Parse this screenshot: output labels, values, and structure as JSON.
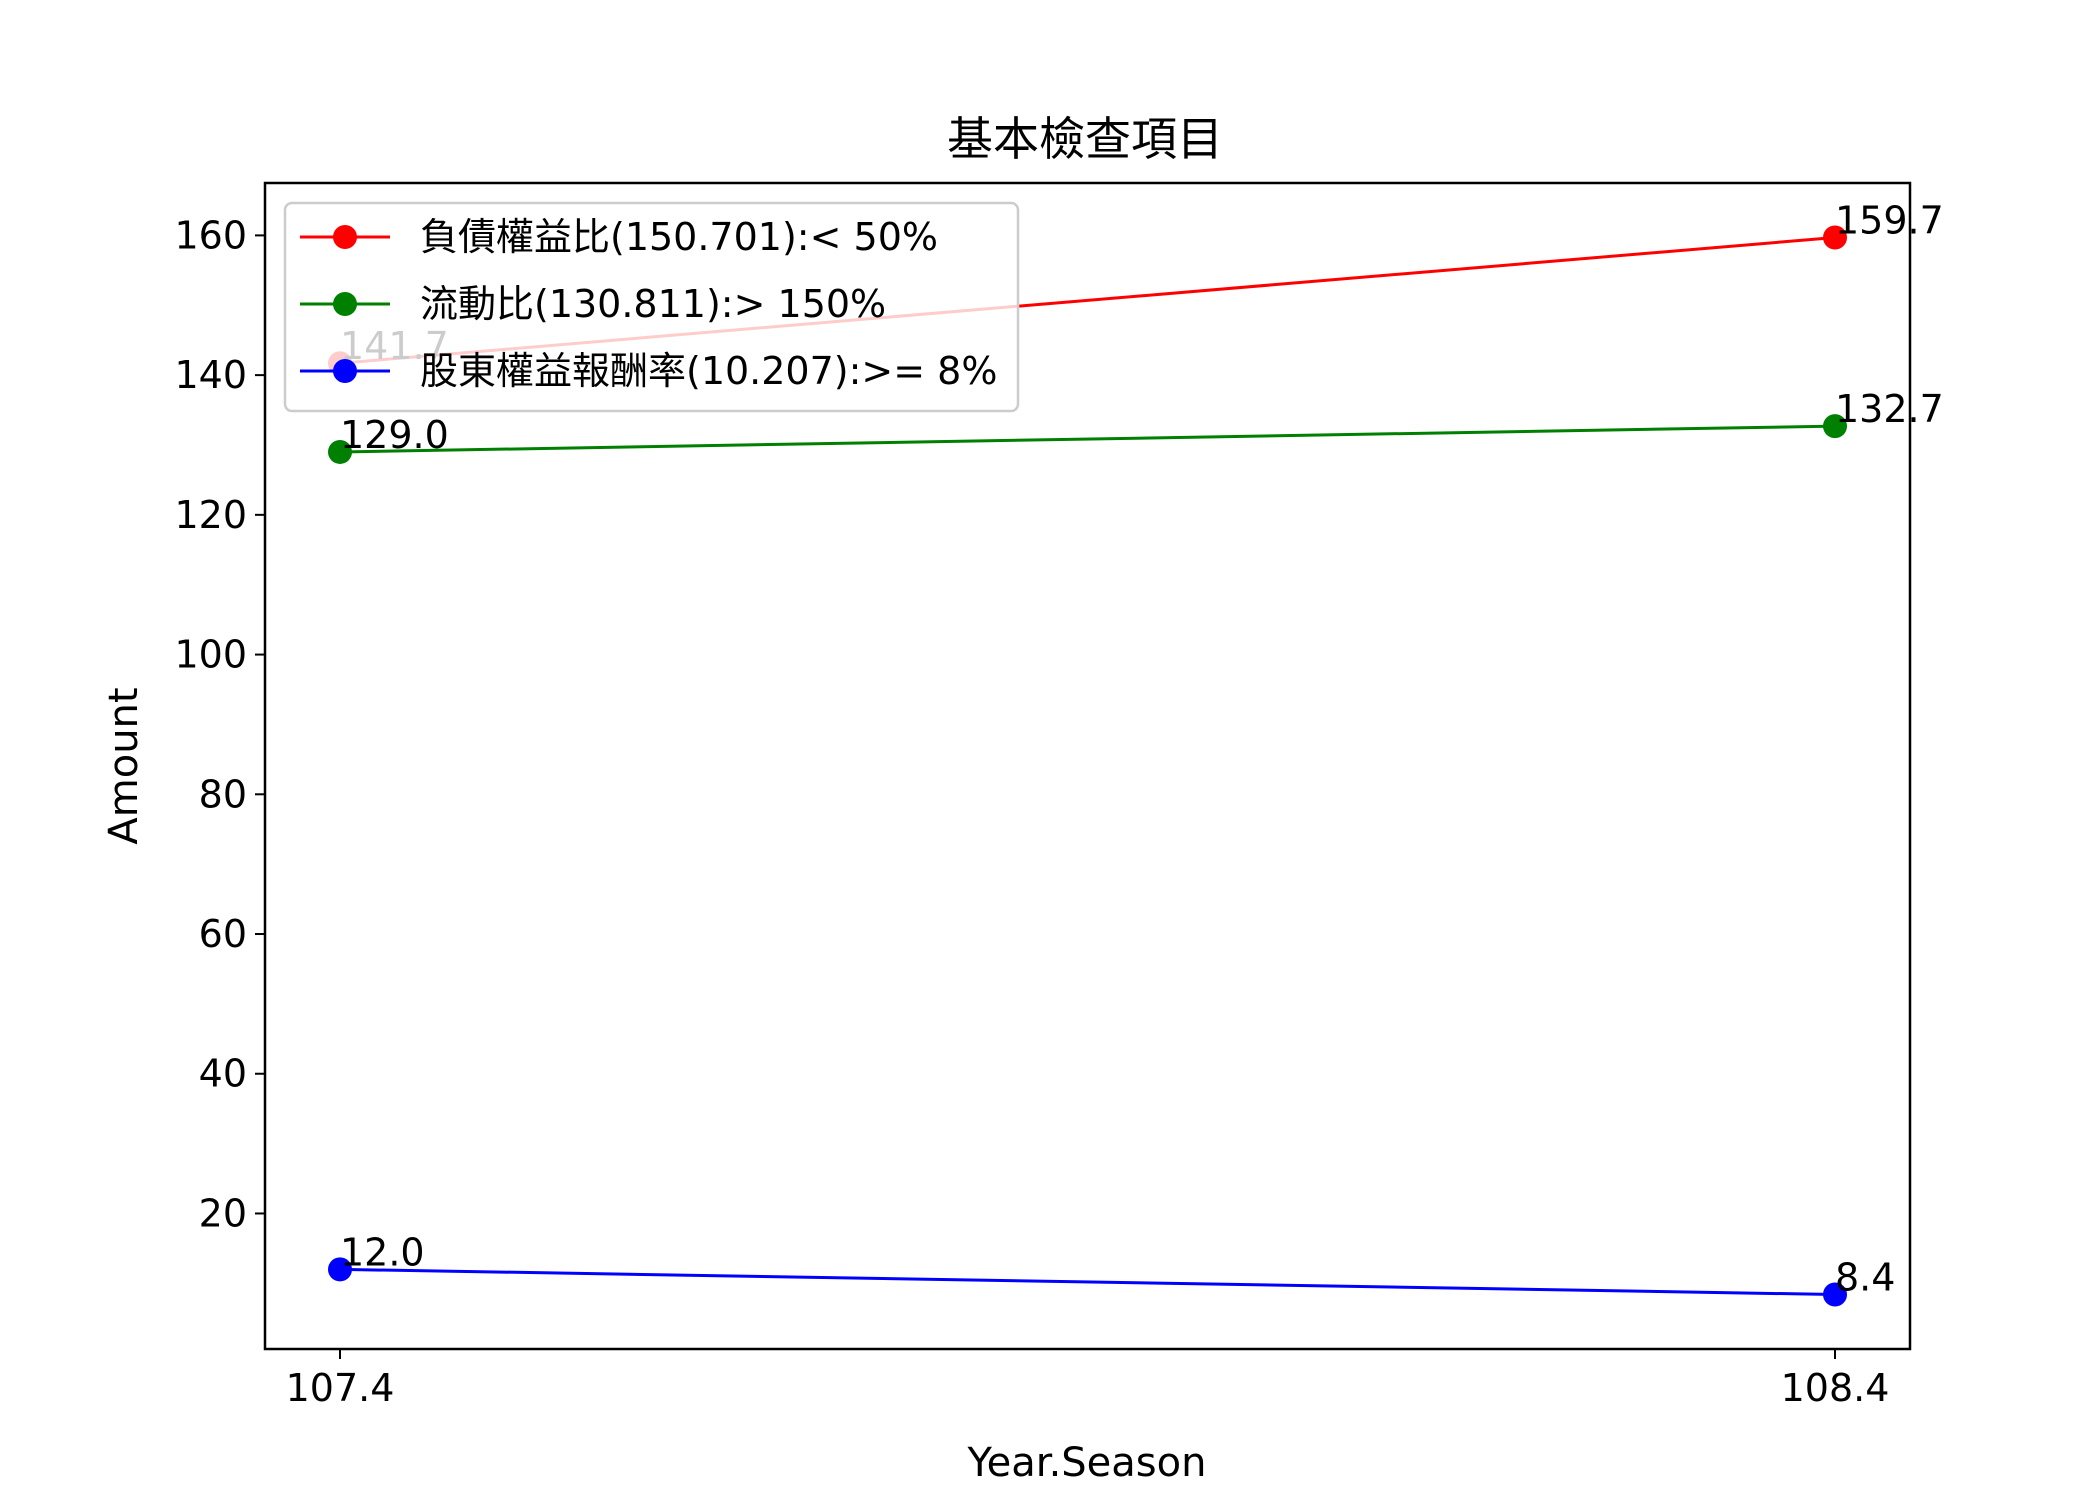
{
  "chart_data": {
    "type": "line",
    "title": "基本檢查項目",
    "xlabel": "Year.Season",
    "ylabel": "Amount",
    "categories": [
      "107.4",
      "108.4"
    ],
    "ylim": [
      0.6,
      167.5
    ],
    "yticks": [
      20,
      40,
      60,
      80,
      100,
      120,
      140,
      160
    ],
    "grid": false,
    "legend_position": "upper-left",
    "series": [
      {
        "name": "負債權益比(150.701):< 50%",
        "color": "#ff0000",
        "values": [
          141.7,
          159.7
        ],
        "labels": [
          "141.7",
          "159.7"
        ]
      },
      {
        "name": "流動比(130.811):> 150%",
        "color": "#008000",
        "values": [
          129.0,
          132.7
        ],
        "labels": [
          "129.0",
          "132.7"
        ]
      },
      {
        "name": "股東權益報酬率(10.207):>= 8%",
        "color": "#0000ff",
        "values": [
          12.0,
          8.4
        ],
        "labels": [
          "12.0",
          "8.4"
        ]
      }
    ]
  }
}
